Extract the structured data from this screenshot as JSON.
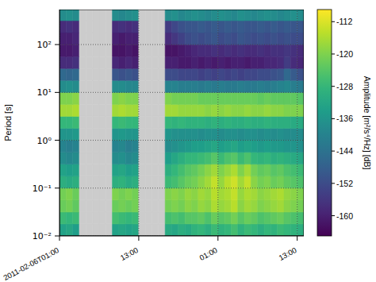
{
  "chart_data": {
    "type": "heatmap",
    "ylabel": "Period [s]",
    "log": "y",
    "grid": true,
    "xlim": [
      0,
      37
    ],
    "xticks": [
      {
        "value": 0,
        "label": "2011-02-06T01:00"
      },
      {
        "value": 12,
        "label": "13:00"
      },
      {
        "value": 24,
        "label": "01:00"
      },
      {
        "value": 36,
        "label": "13:00"
      }
    ],
    "ylim": [
      0.01,
      540
    ],
    "yticks": [
      {
        "value": 0.01,
        "label": "10⁻²"
      },
      {
        "value": 0.1,
        "label": "10⁻¹"
      },
      {
        "value": 1,
        "label": "10⁰"
      },
      {
        "value": 10,
        "label": "10¹"
      },
      {
        "value": 100,
        "label": "10²"
      }
    ],
    "colorbar": {
      "label": "Amplitude [m²/s⁴/Hz] [dB]",
      "lim": [
        -165,
        -109
      ],
      "ticks": [
        -160,
        -152,
        -144,
        -136,
        -128,
        -120,
        -112
      ]
    },
    "cells": {
      "x_edges": [
        0,
        1,
        2,
        3,
        4,
        5,
        6,
        7,
        8,
        9,
        10,
        11,
        12,
        13,
        14,
        15,
        16,
        17,
        18,
        19,
        20,
        21,
        22,
        23,
        24,
        25,
        26,
        27,
        28,
        29,
        30,
        31,
        32,
        33,
        34,
        35,
        36,
        37
      ],
      "y_edges": [
        0.01,
        0.0178,
        0.0316,
        0.0562,
        0.1,
        0.178,
        0.316,
        0.562,
        1,
        1.78,
        3.16,
        5.62,
        10,
        17.8,
        31.6,
        56.2,
        100,
        178,
        316,
        540
      ],
      "values": [
        [
          -133,
          -132,
          -134,
          null,
          null,
          null,
          null,
          null,
          -133,
          -132,
          -133,
          -132,
          null,
          null,
          null,
          null,
          -131,
          -132,
          -130,
          -131,
          -129,
          -128,
          -130,
          -127,
          -129,
          -128,
          -126,
          -129,
          -127,
          -128,
          -130,
          -128,
          -129,
          -127,
          -128,
          -129,
          -130
        ],
        [
          -127,
          -128,
          -127,
          null,
          null,
          null,
          null,
          null,
          -126,
          -127,
          -128,
          -127,
          null,
          null,
          null,
          null,
          -126,
          -125,
          -126,
          -124,
          -124,
          -123,
          -125,
          -122,
          -124,
          -123,
          -121,
          -124,
          -122,
          -123,
          -125,
          -124,
          -123,
          -122,
          -124,
          -125,
          -126
        ],
        [
          -122,
          -121,
          -123,
          null,
          null,
          null,
          null,
          null,
          -122,
          -121,
          -122,
          -121,
          null,
          null,
          null,
          null,
          -121,
          -120,
          -121,
          -119,
          -120,
          -118,
          -119,
          -116,
          -118,
          -117,
          -115,
          -119,
          -117,
          -118,
          -120,
          -119,
          -118,
          -117,
          -119,
          -120,
          -121
        ],
        [
          -121,
          -120,
          -122,
          null,
          null,
          null,
          null,
          null,
          -120,
          -121,
          -120,
          -121,
          null,
          null,
          null,
          null,
          -120,
          -119,
          -120,
          -118,
          -119,
          -117,
          -118,
          -115,
          -117,
          -116,
          -114,
          -118,
          -116,
          -117,
          -119,
          -118,
          -117,
          -116,
          -118,
          -119,
          -120
        ],
        [
          -130,
          -131,
          -130,
          null,
          null,
          null,
          null,
          null,
          -130,
          -129,
          -131,
          -130,
          null,
          null,
          null,
          null,
          -127,
          -126,
          -124,
          -122,
          -121,
          -119,
          -117,
          -114,
          -118,
          -115,
          -113,
          -117,
          -114,
          -119,
          -121,
          -120,
          -122,
          -121,
          -123,
          -124,
          -125
        ],
        [
          -133,
          -134,
          -133,
          null,
          null,
          null,
          null,
          null,
          -133,
          -132,
          -134,
          -133,
          null,
          null,
          null,
          null,
          -130,
          -128,
          -126,
          -124,
          -123,
          -121,
          -119,
          -117,
          -120,
          -118,
          -116,
          -120,
          -117,
          -121,
          -123,
          -122,
          -124,
          -123,
          -125,
          -126,
          -127
        ],
        [
          -138,
          -139,
          -138,
          null,
          null,
          null,
          null,
          null,
          -138,
          -137,
          -139,
          -138,
          null,
          null,
          null,
          null,
          -134,
          -132,
          -130,
          -128,
          -128,
          -127,
          -126,
          -124,
          -127,
          -125,
          -124,
          -127,
          -125,
          -128,
          -129,
          -128,
          -130,
          -129,
          -130,
          -131,
          -132
        ],
        [
          -140,
          -141,
          -140,
          null,
          null,
          null,
          null,
          null,
          -140,
          -139,
          -141,
          -140,
          null,
          null,
          null,
          null,
          -138,
          -137,
          -136,
          -135,
          -134,
          -134,
          -133,
          -132,
          -134,
          -133,
          -132,
          -134,
          -133,
          -134,
          -135,
          -134,
          -135,
          -135,
          -136,
          -136,
          -137
        ],
        [
          -136,
          -136,
          -135,
          null,
          null,
          null,
          null,
          null,
          -136,
          -135,
          -136,
          -136,
          null,
          null,
          null,
          null,
          -136,
          -137,
          -137,
          -137,
          -137,
          -138,
          -137,
          -137,
          -138,
          -137,
          -137,
          -138,
          -137,
          -137,
          -138,
          -137,
          -138,
          -137,
          -138,
          -138,
          -138
        ],
        [
          -128,
          -128,
          -127,
          null,
          null,
          null,
          null,
          null,
          -128,
          -127,
          -128,
          -128,
          null,
          null,
          null,
          null,
          -128,
          -129,
          -128,
          -129,
          -129,
          -129,
          -130,
          -129,
          -130,
          -129,
          -130,
          -130,
          -129,
          -130,
          -130,
          -129,
          -130,
          -130,
          -130,
          -131,
          -131
        ],
        [
          -117,
          -117,
          -116,
          null,
          null,
          null,
          null,
          null,
          -117,
          -116,
          -117,
          -117,
          null,
          null,
          null,
          null,
          -117,
          -117,
          -118,
          -118,
          -118,
          -118,
          -119,
          -118,
          -119,
          -118,
          -119,
          -119,
          -118,
          -119,
          -119,
          -118,
          -119,
          -119,
          -120,
          -120,
          -120
        ],
        [
          -120,
          -120,
          -119,
          null,
          null,
          null,
          null,
          null,
          -120,
          -119,
          -120,
          -120,
          null,
          null,
          null,
          null,
          -120,
          -121,
          -121,
          -121,
          -121,
          -122,
          -122,
          -122,
          -122,
          -122,
          -122,
          -122,
          -122,
          -122,
          -123,
          -122,
          -123,
          -123,
          -123,
          -123,
          -124
        ],
        [
          -138,
          -137,
          -138,
          null,
          null,
          null,
          null,
          null,
          -138,
          -138,
          -139,
          -139,
          null,
          null,
          null,
          null,
          -140,
          -140,
          -141,
          -141,
          -141,
          -142,
          -141,
          -142,
          -141,
          -142,
          -142,
          -141,
          -142,
          -142,
          -141,
          -142,
          -141,
          -140,
          -139,
          -141,
          -142
        ],
        [
          -146,
          -147,
          -146,
          null,
          null,
          null,
          null,
          null,
          -150,
          -151,
          -150,
          -151,
          null,
          null,
          null,
          null,
          -152,
          -152,
          -153,
          -153,
          -153,
          -154,
          -153,
          -154,
          -153,
          -154,
          -153,
          -154,
          -153,
          -153,
          -152,
          -152,
          -151,
          -150,
          -146,
          -149,
          -151
        ],
        [
          -158,
          -158,
          -157,
          null,
          null,
          null,
          null,
          null,
          -159,
          -160,
          -159,
          -160,
          null,
          null,
          null,
          null,
          -160,
          -160,
          -161,
          -161,
          -160,
          -161,
          -160,
          -161,
          -160,
          -161,
          -160,
          -160,
          -161,
          -160,
          -160,
          -159,
          -159,
          -158,
          -155,
          -158,
          -159
        ],
        [
          -161,
          -161,
          -160,
          null,
          null,
          null,
          null,
          null,
          -162,
          -162,
          -161,
          -162,
          null,
          null,
          null,
          null,
          -162,
          -162,
          -161,
          -160,
          -159,
          -158,
          -158,
          -157,
          -158,
          -157,
          -158,
          -157,
          -158,
          -158,
          -157,
          -158,
          -157,
          -157,
          -156,
          -157,
          -158
        ],
        [
          -160,
          -160,
          -159,
          null,
          null,
          null,
          null,
          null,
          -160,
          -161,
          -160,
          -160,
          null,
          null,
          null,
          null,
          -158,
          -156,
          -154,
          -152,
          -151,
          -152,
          -151,
          -150,
          -152,
          -151,
          -152,
          -150,
          -151,
          -152,
          -151,
          -152,
          -151,
          -152,
          -151,
          -152,
          -152
        ],
        [
          -158,
          -157,
          -158,
          null,
          null,
          null,
          null,
          null,
          -158,
          -157,
          -158,
          -157,
          null,
          null,
          null,
          null,
          -155,
          -153,
          -151,
          -150,
          -150,
          -149,
          -150,
          -149,
          -150,
          -149,
          -150,
          -149,
          -150,
          -150,
          -149,
          -150,
          -149,
          -150,
          -149,
          -150,
          -150
        ],
        [
          -138,
          -137,
          -138,
          null,
          null,
          null,
          null,
          null,
          -138,
          -139,
          -138,
          -137,
          null,
          null,
          null,
          null,
          -138,
          -137,
          -139,
          -138,
          -137,
          -138,
          -139,
          -138,
          -137,
          -138,
          -139,
          -137,
          -138,
          -139,
          -138,
          -137,
          -138,
          -139,
          -138,
          -137,
          -138
        ]
      ]
    }
  }
}
